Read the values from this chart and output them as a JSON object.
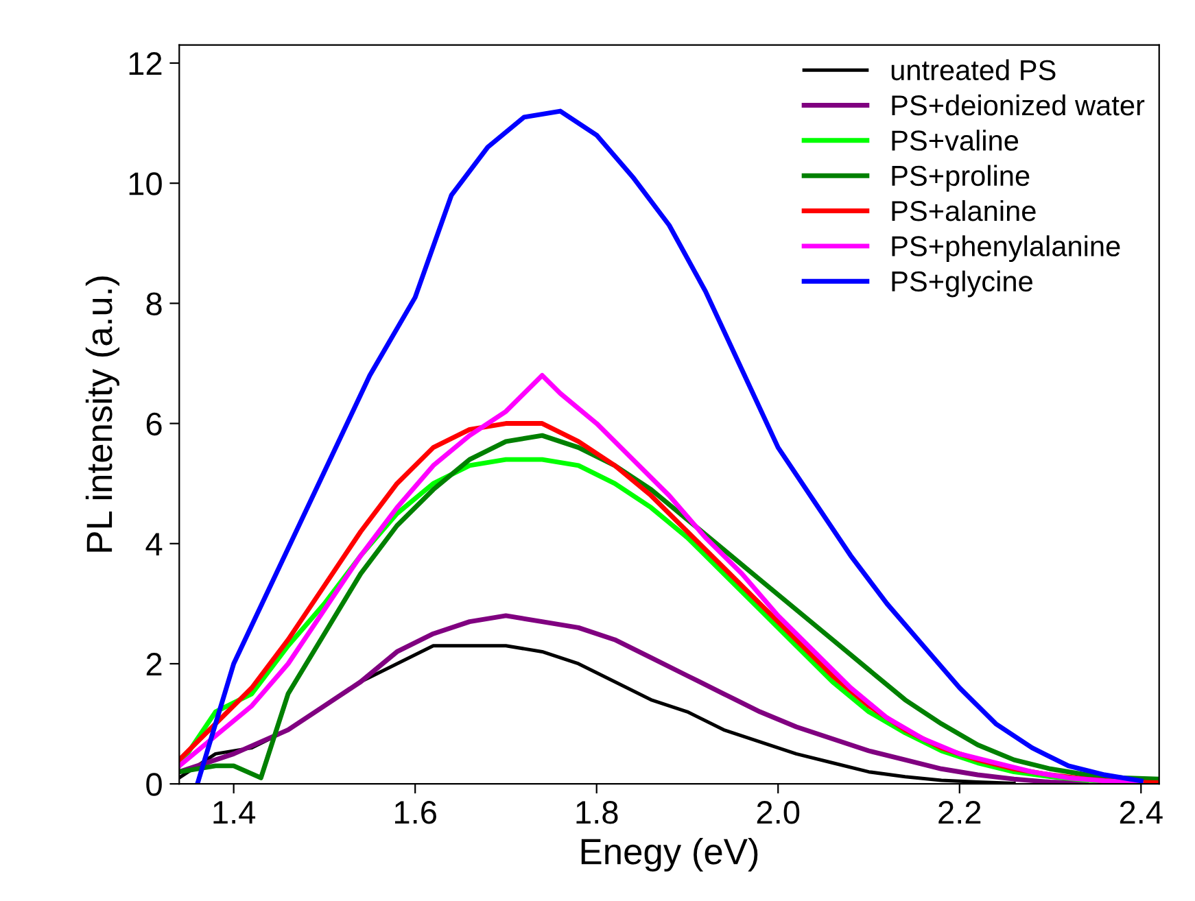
{
  "chart_data": {
    "type": "line",
    "xlabel": "Enegy (eV)",
    "ylabel": "PL intensity (a.u.)",
    "xlim": [
      1.34,
      2.42
    ],
    "xticks": [
      1.4,
      1.6,
      1.8,
      {
        "value": 2.0,
        "label": "2.0"
      },
      2.2,
      2.4
    ],
    "ylim": [
      0,
      12.3
    ],
    "yticks": [
      0,
      2,
      4,
      6,
      8,
      10,
      12
    ],
    "grid": false,
    "legend": "top right",
    "marker": "none",
    "line_style": "solid",
    "series": [
      {
        "name": "untreated PS",
        "color": "#000000",
        "x": [
          1.34,
          1.38,
          1.42,
          1.46,
          1.5,
          1.54,
          1.58,
          1.62,
          1.66,
          1.7,
          1.74,
          1.78,
          1.82,
          1.86,
          1.9,
          1.94,
          1.98,
          2.02,
          2.06,
          2.1,
          2.14,
          2.18,
          2.22,
          2.26
        ],
        "values": [
          0.1,
          0.5,
          0.6,
          0.9,
          1.3,
          1.7,
          2.0,
          2.3,
          2.3,
          2.3,
          2.2,
          2.0,
          1.7,
          1.4,
          1.2,
          0.9,
          0.7,
          0.5,
          0.35,
          0.2,
          0.12,
          0.06,
          0.03,
          0.01
        ]
      },
      {
        "name": "PS+deionized water",
        "color": "#800080",
        "x": [
          1.34,
          1.4,
          1.46,
          1.5,
          1.54,
          1.58,
          1.62,
          1.66,
          1.7,
          1.74,
          1.78,
          1.82,
          1.86,
          1.9,
          1.94,
          1.98,
          2.02,
          2.06,
          2.1,
          2.14,
          2.18,
          2.22,
          2.26,
          2.3,
          2.34
        ],
        "values": [
          0.2,
          0.5,
          0.9,
          1.3,
          1.7,
          2.2,
          2.5,
          2.7,
          2.8,
          2.7,
          2.6,
          2.4,
          2.1,
          1.8,
          1.5,
          1.2,
          0.95,
          0.75,
          0.55,
          0.4,
          0.25,
          0.15,
          0.08,
          0.03,
          0.01
        ]
      },
      {
        "name": "PS+valine",
        "color": "#00ff00",
        "x": [
          1.34,
          1.38,
          1.42,
          1.46,
          1.5,
          1.54,
          1.58,
          1.62,
          1.66,
          1.7,
          1.74,
          1.78,
          1.82,
          1.86,
          1.9,
          1.94,
          1.98,
          2.02,
          2.06,
          2.1,
          2.14,
          2.18,
          2.22,
          2.26,
          2.3,
          2.34,
          2.38,
          2.42
        ],
        "values": [
          0.3,
          1.2,
          1.5,
          2.3,
          3.0,
          3.8,
          4.5,
          5.0,
          5.3,
          5.4,
          5.4,
          5.3,
          5.0,
          4.6,
          4.1,
          3.5,
          2.9,
          2.3,
          1.7,
          1.2,
          0.85,
          0.55,
          0.35,
          0.2,
          0.12,
          0.06,
          0.03,
          0.02
        ]
      },
      {
        "name": "PS+proline",
        "color": "#008000",
        "x": [
          1.34,
          1.38,
          1.4,
          1.43,
          1.46,
          1.5,
          1.54,
          1.58,
          1.62,
          1.66,
          1.7,
          1.74,
          1.78,
          1.82,
          1.86,
          1.9,
          1.94,
          1.98,
          2.02,
          2.06,
          2.1,
          2.14,
          2.18,
          2.22,
          2.26,
          2.3,
          2.34,
          2.38,
          2.42
        ],
        "values": [
          0.2,
          0.3,
          0.3,
          0.1,
          1.5,
          2.5,
          3.5,
          4.3,
          4.9,
          5.4,
          5.7,
          5.8,
          5.6,
          5.3,
          4.9,
          4.4,
          3.9,
          3.4,
          2.9,
          2.4,
          1.9,
          1.4,
          1.0,
          0.65,
          0.4,
          0.25,
          0.15,
          0.1,
          0.08
        ]
      },
      {
        "name": "PS+alanine",
        "color": "#ff0000",
        "x": [
          1.34,
          1.38,
          1.42,
          1.46,
          1.5,
          1.54,
          1.58,
          1.62,
          1.66,
          1.7,
          1.74,
          1.78,
          1.82,
          1.86,
          1.9,
          1.94,
          1.98,
          2.02,
          2.06,
          2.1,
          2.14,
          2.18,
          2.22,
          2.26,
          2.3,
          2.34,
          2.38,
          2.42
        ],
        "values": [
          0.4,
          1.0,
          1.6,
          2.4,
          3.3,
          4.2,
          5.0,
          5.6,
          5.9,
          6.0,
          6.0,
          5.7,
          5.3,
          4.8,
          4.2,
          3.6,
          3.0,
          2.4,
          1.8,
          1.3,
          0.9,
          0.6,
          0.4,
          0.25,
          0.15,
          0.08,
          0.03,
          0.02
        ]
      },
      {
        "name": "PS+phenylalanine",
        "color": "#ff00ff",
        "x": [
          1.34,
          1.38,
          1.42,
          1.46,
          1.5,
          1.54,
          1.58,
          1.62,
          1.66,
          1.7,
          1.74,
          1.76,
          1.8,
          1.84,
          1.88,
          1.92,
          1.96,
          2.0,
          2.04,
          2.08,
          2.12,
          2.16,
          2.2,
          2.24,
          2.28,
          2.32,
          2.36,
          2.4
        ],
        "values": [
          0.3,
          0.8,
          1.3,
          2.0,
          2.9,
          3.8,
          4.6,
          5.3,
          5.8,
          6.2,
          6.8,
          6.5,
          6.0,
          5.4,
          4.8,
          4.1,
          3.5,
          2.8,
          2.2,
          1.6,
          1.1,
          0.75,
          0.5,
          0.35,
          0.2,
          0.1,
          0.05,
          0.02
        ]
      },
      {
        "name": "PS+glycine",
        "color": "#0000ff",
        "x": [
          1.36,
          1.38,
          1.4,
          1.45,
          1.5,
          1.55,
          1.6,
          1.64,
          1.68,
          1.72,
          1.76,
          1.8,
          1.84,
          1.88,
          1.92,
          1.96,
          2.0,
          2.04,
          2.08,
          2.12,
          2.16,
          2.2,
          2.24,
          2.28,
          2.32,
          2.36,
          2.4
        ],
        "values": [
          0.0,
          1.0,
          2.0,
          3.6,
          5.2,
          6.8,
          8.1,
          9.8,
          10.6,
          11.1,
          11.2,
          10.8,
          10.1,
          9.3,
          8.2,
          6.9,
          5.6,
          4.7,
          3.8,
          3.0,
          2.3,
          1.6,
          1.0,
          0.6,
          0.3,
          0.15,
          0.05
        ]
      }
    ]
  }
}
